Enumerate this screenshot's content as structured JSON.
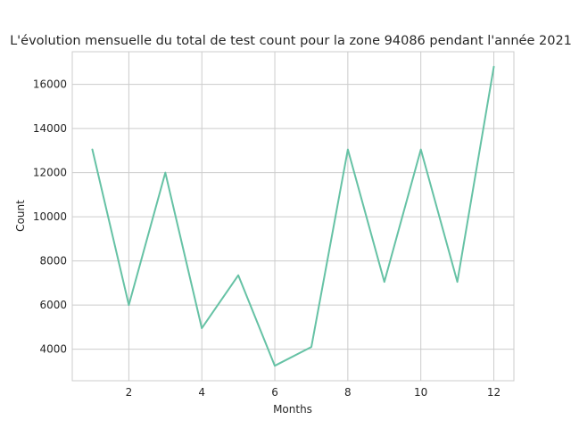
{
  "chart_data": {
    "type": "line",
    "title": "L'évolution mensuelle du total de test count pour la zone 94086 pendant l'année 2021",
    "xlabel": "Months",
    "ylabel": "Count",
    "x": [
      1,
      2,
      3,
      4,
      5,
      6,
      7,
      8,
      9,
      10,
      11,
      12
    ],
    "series": [
      {
        "color": "#66c2a5",
        "values": [
          13050,
          6000,
          12000,
          4950,
          7350,
          3250,
          4100,
          13050,
          7050,
          13050,
          7050,
          16800
        ]
      }
    ],
    "xticks": [
      2,
      4,
      6,
      8,
      10,
      12
    ],
    "yticks": [
      4000,
      6000,
      8000,
      10000,
      12000,
      14000,
      16000
    ],
    "xlim": [
      0.45,
      12.55
    ],
    "ylim": [
      2570,
      17480
    ],
    "grid": true,
    "style": "whitegrid"
  }
}
